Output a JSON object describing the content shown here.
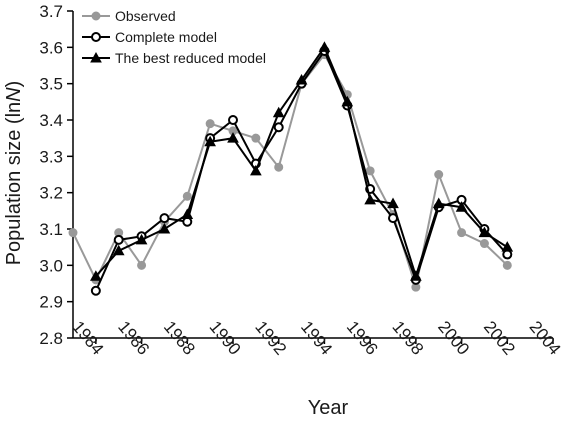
{
  "chart_data": {
    "type": "line",
    "xlabel": "Year",
    "ylabel_main": "Population size (ln",
    "ylabel_italic": "N",
    "ylabel_tail": ")",
    "xlim": [
      1983,
      2004
    ],
    "ylim": [
      2.8,
      3.7
    ],
    "xticks": [
      1984,
      1986,
      1988,
      1990,
      1992,
      1994,
      1996,
      1998,
      2000,
      2002,
      2004
    ],
    "yticks": [
      "2.8",
      "2.9",
      "3.0",
      "3.1",
      "3.2",
      "3.3",
      "3.4",
      "3.5",
      "3.6",
      "3.7"
    ],
    "legend": [
      "Observed",
      "Complete model",
      "The best reduced model"
    ],
    "series": [
      {
        "name": "Observed",
        "color": "#999999",
        "marker": "filled-circle",
        "x": [
          1983,
          1984,
          1985,
          1986,
          1987,
          1988,
          1989,
          1990,
          1991,
          1992,
          1993,
          1994,
          1995,
          1996,
          1997,
          1998,
          1999,
          2000,
          2001,
          2002,
          2003
        ],
        "y": [
          3.09,
          2.96,
          3.09,
          3.0,
          3.12,
          3.19,
          3.39,
          3.37,
          3.35,
          3.27,
          3.5,
          3.58,
          3.47,
          3.26,
          3.14,
          2.94,
          3.25,
          3.09,
          3.06,
          3.0,
          null
        ]
      },
      {
        "name": "Complete model",
        "color": "#000000",
        "marker": "open-circle",
        "x": [
          1984,
          1985,
          1986,
          1987,
          1988,
          1989,
          1990,
          1991,
          1992,
          1993,
          1994,
          1995,
          1996,
          1997,
          1998,
          1999,
          2000,
          2001,
          2002,
          2003
        ],
        "y": [
          2.93,
          3.07,
          3.08,
          3.13,
          3.12,
          3.35,
          3.4,
          3.28,
          3.38,
          3.5,
          3.59,
          3.44,
          3.21,
          3.13,
          2.96,
          3.16,
          3.18,
          3.1,
          3.03,
          null
        ]
      },
      {
        "name": "The best reduced model",
        "color": "#000000",
        "marker": "filled-triangle",
        "x": [
          1984,
          1985,
          1986,
          1987,
          1988,
          1989,
          1990,
          1991,
          1992,
          1993,
          1994,
          1995,
          1996,
          1997,
          1998,
          1999,
          2000,
          2001,
          2002,
          2003
        ],
        "y": [
          2.97,
          3.04,
          3.07,
          3.1,
          3.14,
          3.34,
          3.35,
          3.26,
          3.42,
          3.51,
          3.6,
          3.45,
          3.18,
          3.17,
          2.97,
          3.17,
          3.16,
          3.09,
          3.05,
          null
        ]
      }
    ]
  }
}
